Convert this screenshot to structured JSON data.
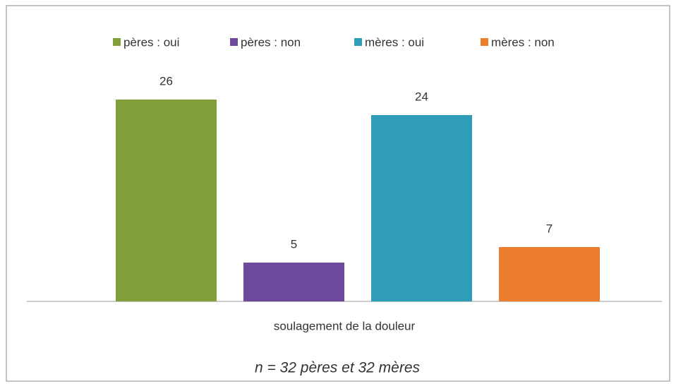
{
  "chart_data": {
    "type": "bar",
    "categories": [
      "soulagement de la douleur"
    ],
    "series": [
      {
        "name": "pères : oui",
        "color": "#82a03a",
        "values": [
          26
        ]
      },
      {
        "name": "pères : non",
        "color": "#6f4a9c",
        "values": [
          5
        ]
      },
      {
        "name": "mères : oui",
        "color": "#2f9db8",
        "values": [
          24
        ]
      },
      {
        "name": "mères : non",
        "color": "#ec7d2c",
        "values": [
          7
        ]
      }
    ],
    "ylim": [
      0,
      30
    ],
    "annotation": "n = 32 pères et 32 mères",
    "legend": "top"
  }
}
